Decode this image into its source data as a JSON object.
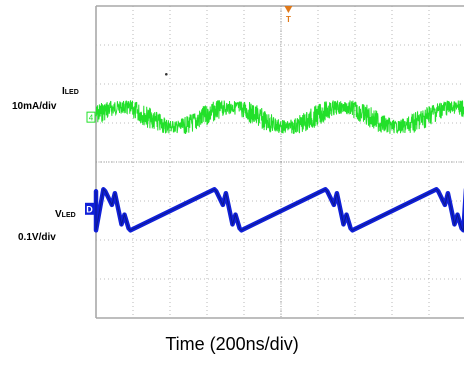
{
  "chart_data": {
    "type": "line",
    "xlabel": "Time (200ns/div)",
    "grid": true,
    "x_divisions": 10,
    "y_divisions": 8,
    "series": [
      {
        "name_main": "I",
        "name_sub": "LED",
        "scale": "10mA/div",
        "color": "#22e02a",
        "ref_marker": "4",
        "waveform": "noisy sinusoid",
        "period_div": 3.0,
        "center_div": 2.85,
        "ripple_pp_div": 0.5,
        "noise_pp_div": 0.35
      },
      {
        "name_main": "V",
        "name_sub": "LED",
        "scale": "0.1V/div",
        "color": "#1020d8",
        "ref_marker": "D",
        "waveform": "sawtooth ramp with ringing drop",
        "period_div": 3.0,
        "low_div": 5.75,
        "high_div": 4.75
      }
    ],
    "trigger_marker": "T",
    "trigger_color": "#e07818"
  }
}
